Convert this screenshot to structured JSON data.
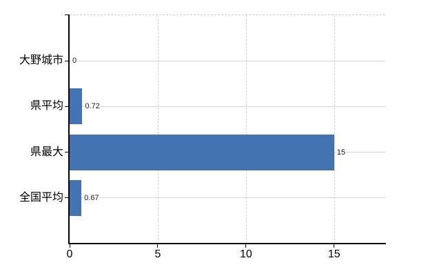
{
  "chart_data": {
    "type": "bar",
    "orientation": "horizontal",
    "title": "",
    "xlabel": "",
    "ylabel": "",
    "categories": [
      "大野城市",
      "県平均",
      "県最大",
      "全国平均"
    ],
    "values": [
      0,
      0.72,
      15,
      0.67
    ],
    "data_labels": [
      "0",
      "0.72",
      "15",
      "0.67"
    ],
    "x_ticks": [
      0,
      5,
      10,
      15
    ],
    "x_tick_labels": [
      "0",
      "5",
      "10",
      "15"
    ],
    "xlim": [
      0,
      17.9
    ],
    "grid": "on",
    "legend": "none",
    "colors": {
      "bar": "#4373b1",
      "grid": "#d2d6d2",
      "plot_border_dashed": "#cdd2cd",
      "axis": "#000000",
      "background": "#ffffff",
      "text": "#000000"
    }
  }
}
